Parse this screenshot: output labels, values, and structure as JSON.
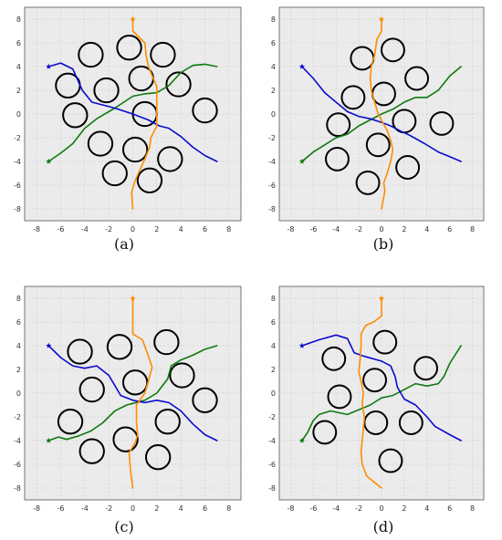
{
  "figure": {
    "ticks": [
      "-8",
      "-6",
      "-4",
      "-2",
      "0",
      "2",
      "4",
      "6",
      "8"
    ],
    "tick_values": [
      -8,
      -6,
      -4,
      -2,
      0,
      2,
      4,
      6,
      8
    ],
    "colors": {
      "blue": "#0a0acc",
      "green": "#0e7a0e",
      "orange": "#ff8c00",
      "start_star": "#0a0acc",
      "green_star": "#0e7a0e"
    },
    "panels": [
      {
        "caption": "(a)",
        "obstacles": [
          [
            -3.5,
            5
          ],
          [
            -0.3,
            5.6
          ],
          [
            2.5,
            5
          ],
          [
            -5.4,
            2.4
          ],
          [
            -2.2,
            2
          ],
          [
            0.7,
            3
          ],
          [
            3.8,
            2.5
          ],
          [
            -4.8,
            -0.1
          ],
          [
            1,
            0
          ],
          [
            6,
            0.3
          ],
          [
            -2.7,
            -2.5
          ],
          [
            0.2,
            -3
          ],
          [
            3.1,
            -3.8
          ],
          [
            -1.5,
            -5
          ],
          [
            1.4,
            -5.6
          ]
        ],
        "paths": {
          "blue": [
            [
              -7,
              4
            ],
            [
              -6,
              4.3
            ],
            [
              -5,
              3.8
            ],
            [
              -4.2,
              2
            ],
            [
              -3.4,
              1
            ],
            [
              -1.5,
              0.5
            ],
            [
              0,
              0
            ],
            [
              1.3,
              -0.5
            ],
            [
              2.2,
              -1
            ],
            [
              3,
              -1.2
            ],
            [
              4,
              -1.9
            ],
            [
              5,
              -2.8
            ],
            [
              6,
              -3.5
            ],
            [
              7,
              -4
            ]
          ],
          "green": [
            [
              -7,
              -4
            ],
            [
              -6,
              -3.3
            ],
            [
              -5,
              -2.5
            ],
            [
              -4,
              -1.2
            ],
            [
              -3,
              -0.4
            ],
            [
              -1.5,
              0.5
            ],
            [
              0,
              1.5
            ],
            [
              1,
              1.7
            ],
            [
              2,
              1.8
            ],
            [
              3,
              2.4
            ],
            [
              4,
              3.5
            ],
            [
              5,
              4.1
            ],
            [
              6,
              4.2
            ],
            [
              7,
              4
            ]
          ],
          "orange": [
            [
              0,
              8
            ],
            [
              0,
              7
            ],
            [
              0.5,
              6.5
            ],
            [
              1,
              6
            ],
            [
              1.1,
              5
            ],
            [
              1.3,
              4
            ],
            [
              1.7,
              3
            ],
            [
              2,
              2.3
            ],
            [
              2,
              1
            ],
            [
              2,
              0
            ],
            [
              2,
              -1
            ],
            [
              1.5,
              -2
            ],
            [
              1.4,
              -2.8
            ],
            [
              1,
              -3.8
            ],
            [
              0.6,
              -4.7
            ],
            [
              0.2,
              -5.6
            ],
            [
              -0.1,
              -6.6
            ],
            [
              0,
              -8
            ]
          ]
        }
      },
      {
        "caption": "(b)",
        "obstacles": [
          [
            -1.7,
            4.7
          ],
          [
            1,
            5.4
          ],
          [
            3.1,
            3
          ],
          [
            -2.5,
            1.4
          ],
          [
            0.2,
            1.7
          ],
          [
            -3.8,
            -0.9
          ],
          [
            2,
            -0.6
          ],
          [
            5.3,
            -0.8
          ],
          [
            -0.3,
            -2.6
          ],
          [
            -3.9,
            -3.8
          ],
          [
            2.3,
            -4.5
          ],
          [
            -1.2,
            -5.8
          ]
        ],
        "paths": {
          "blue": [
            [
              -7,
              4
            ],
            [
              -6,
              3
            ],
            [
              -5,
              1.8
            ],
            [
              -4,
              1
            ],
            [
              -3,
              0.2
            ],
            [
              -2,
              -0.2
            ],
            [
              -1,
              -0.4
            ],
            [
              0,
              -0.7
            ],
            [
              0.8,
              -1
            ],
            [
              1.6,
              -1.4
            ],
            [
              2.5,
              -1.8
            ],
            [
              3.8,
              -2.5
            ],
            [
              5,
              -3.2
            ],
            [
              6,
              -3.6
            ],
            [
              7,
              -4
            ]
          ],
          "green": [
            [
              -7,
              -4
            ],
            [
              -6,
              -3.2
            ],
            [
              -5,
              -2.6
            ],
            [
              -4,
              -2
            ],
            [
              -3,
              -1.7
            ],
            [
              -2,
              -1
            ],
            [
              -1,
              -0.5
            ],
            [
              0,
              0
            ],
            [
              1,
              0.4
            ],
            [
              2,
              1
            ],
            [
              3,
              1.4
            ],
            [
              4,
              1.4
            ],
            [
              5,
              2
            ],
            [
              6,
              3.2
            ],
            [
              7,
              4
            ]
          ],
          "orange": [
            [
              0,
              8
            ],
            [
              0,
              7
            ],
            [
              -0.4,
              6.3
            ],
            [
              -0.6,
              5
            ],
            [
              -0.9,
              4
            ],
            [
              -1,
              3
            ],
            [
              -0.9,
              2
            ],
            [
              -0.6,
              1
            ],
            [
              -0.3,
              0
            ],
            [
              0.1,
              -0.7
            ],
            [
              0.5,
              -1.4
            ],
            [
              0.8,
              -2.2
            ],
            [
              1,
              -3
            ],
            [
              0.8,
              -4
            ],
            [
              0.5,
              -5
            ],
            [
              0.2,
              -5.8
            ],
            [
              0.3,
              -6.5
            ],
            [
              0,
              -8
            ]
          ]
        }
      },
      {
        "caption": "(c)",
        "obstacles": [
          [
            -4.4,
            3.5
          ],
          [
            -1.1,
            3.9
          ],
          [
            2.8,
            4.3
          ],
          [
            -3.4,
            0.3
          ],
          [
            0.2,
            0.9
          ],
          [
            4.1,
            1.5
          ],
          [
            6,
            -0.6
          ],
          [
            -5.2,
            -2.4
          ],
          [
            2.9,
            -2.4
          ],
          [
            -0.6,
            -3.9
          ],
          [
            -3.4,
            -4.9
          ],
          [
            2.1,
            -5.4
          ]
        ],
        "paths": {
          "blue": [
            [
              -7,
              4
            ],
            [
              -6,
              3
            ],
            [
              -5,
              2.3
            ],
            [
              -4,
              2.1
            ],
            [
              -3,
              2.3
            ],
            [
              -2,
              1.5
            ],
            [
              -1,
              -0.2
            ],
            [
              0,
              -0.6
            ],
            [
              1,
              -0.8
            ],
            [
              2,
              -0.6
            ],
            [
              3,
              -0.8
            ],
            [
              4,
              -1.5
            ],
            [
              5,
              -2.6
            ],
            [
              6,
              -3.5
            ],
            [
              7,
              -4
            ]
          ],
          "green": [
            [
              -7,
              -4
            ],
            [
              -6.2,
              -3.7
            ],
            [
              -5.5,
              -3.9
            ],
            [
              -4.5,
              -3.6
            ],
            [
              -3.5,
              -3.2
            ],
            [
              -2.5,
              -2.5
            ],
            [
              -1.5,
              -1.5
            ],
            [
              -0.5,
              -1
            ],
            [
              1,
              -0.6
            ],
            [
              2,
              0
            ],
            [
              2.9,
              1.2
            ],
            [
              3.2,
              2.3
            ],
            [
              4,
              2.8
            ],
            [
              5,
              3.2
            ],
            [
              6,
              3.7
            ],
            [
              7,
              4
            ]
          ],
          "orange": [
            [
              0,
              8
            ],
            [
              0,
              6.5
            ],
            [
              0,
              5
            ],
            [
              0.8,
              4.5
            ],
            [
              1.2,
              3.4
            ],
            [
              1.6,
              2.2
            ],
            [
              1.3,
              1
            ],
            [
              1,
              0
            ],
            [
              0.3,
              -1
            ],
            [
              0.3,
              -2.5
            ],
            [
              0.4,
              -3.5
            ],
            [
              0.2,
              -4.2
            ],
            [
              -0.3,
              -5
            ],
            [
              -0.2,
              -6.5
            ],
            [
              0,
              -8
            ]
          ]
        }
      },
      {
        "caption": "(d)",
        "obstacles": [
          [
            0.3,
            4.3
          ],
          [
            -4.2,
            2.9
          ],
          [
            3.9,
            2.1
          ],
          [
            -0.6,
            1.1
          ],
          [
            -3.7,
            -0.3
          ],
          [
            -0.5,
            -2.5
          ],
          [
            2.6,
            -2.5
          ],
          [
            -5,
            -3.3
          ],
          [
            0.8,
            -5.7
          ]
        ],
        "paths": {
          "blue": [
            [
              -7,
              4
            ],
            [
              -5.5,
              4.5
            ],
            [
              -4,
              4.9
            ],
            [
              -3,
              4.6
            ],
            [
              -2.4,
              3.4
            ],
            [
              -1.5,
              3.1
            ],
            [
              0,
              2.7
            ],
            [
              0.8,
              2.3
            ],
            [
              1.2,
              1.4
            ],
            [
              1.4,
              0.5
            ],
            [
              2,
              -0.5
            ],
            [
              3,
              -1
            ],
            [
              4,
              -2
            ],
            [
              4.7,
              -2.8
            ],
            [
              6,
              -3.5
            ],
            [
              7,
              -4
            ]
          ],
          "green": [
            [
              -7,
              -4
            ],
            [
              -6.5,
              -3.3
            ],
            [
              -6,
              -2.3
            ],
            [
              -5.5,
              -1.8
            ],
            [
              -4.5,
              -1.5
            ],
            [
              -3,
              -1.8
            ],
            [
              -2,
              -1.4
            ],
            [
              -1,
              -1
            ],
            [
              0,
              -0.4
            ],
            [
              1,
              -0.2
            ],
            [
              2,
              0.3
            ],
            [
              3,
              0.8
            ],
            [
              4,
              0.6
            ],
            [
              5,
              0.8
            ],
            [
              5.5,
              1.4
            ],
            [
              6,
              2.5
            ],
            [
              7,
              4
            ]
          ],
          "orange": [
            [
              0,
              8
            ],
            [
              0,
              6.5
            ],
            [
              -0.7,
              6
            ],
            [
              -1.4,
              5.7
            ],
            [
              -1.8,
              5
            ],
            [
              -1.8,
              4
            ],
            [
              -1.9,
              2.7
            ],
            [
              -2,
              1.8
            ],
            [
              -1.8,
              1
            ],
            [
              -1.6,
              0
            ],
            [
              -1.7,
              -1
            ],
            [
              -1.5,
              -2
            ],
            [
              -1.6,
              -3
            ],
            [
              -1.7,
              -4
            ],
            [
              -1.8,
              -5
            ],
            [
              -1.7,
              -6
            ],
            [
              -1.3,
              -7
            ],
            [
              0,
              -8
            ]
          ]
        }
      }
    ]
  }
}
